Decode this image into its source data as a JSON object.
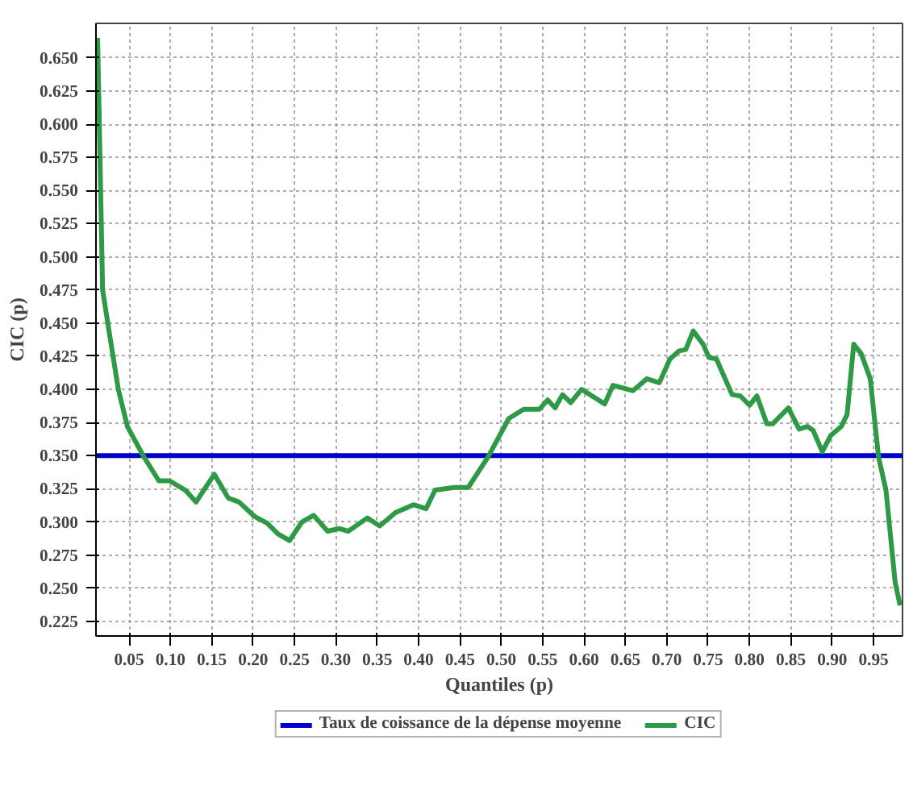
{
  "chart_data": {
    "type": "line",
    "xlabel": "Quantiles (p)",
    "ylabel": "CIC (p)",
    "xlim": [
      0.01,
      0.985
    ],
    "ylim": [
      0.214,
      0.676
    ],
    "xticks": [
      {
        "value": 0.05,
        "label": "0.05"
      },
      {
        "value": 0.1,
        "label": "0.10"
      },
      {
        "value": 0.15,
        "label": "0.15"
      },
      {
        "value": 0.2,
        "label": "0.20"
      },
      {
        "value": 0.25,
        "label": "0.25"
      },
      {
        "value": 0.3,
        "label": "0.30"
      },
      {
        "value": 0.35,
        "label": "0.35"
      },
      {
        "value": 0.4,
        "label": "0.40"
      },
      {
        "value": 0.45,
        "label": "0.45"
      },
      {
        "value": 0.5,
        "label": "0.50"
      },
      {
        "value": 0.55,
        "label": "0.55"
      },
      {
        "value": 0.6,
        "label": "0.60"
      },
      {
        "value": 0.65,
        "label": "0.65"
      },
      {
        "value": 0.7,
        "label": "0.70"
      },
      {
        "value": 0.75,
        "label": "0.75"
      },
      {
        "value": 0.8,
        "label": "0.80"
      },
      {
        "value": 0.85,
        "label": "0.85"
      },
      {
        "value": 0.9,
        "label": "0.90"
      },
      {
        "value": 0.95,
        "label": "0.95"
      }
    ],
    "yticks": [
      {
        "value": 0.225,
        "label": "0.225"
      },
      {
        "value": 0.25,
        "label": "0.250"
      },
      {
        "value": 0.275,
        "label": "0.275"
      },
      {
        "value": 0.3,
        "label": "0.300"
      },
      {
        "value": 0.325,
        "label": "0.325"
      },
      {
        "value": 0.35,
        "label": "0.350"
      },
      {
        "value": 0.375,
        "label": "0.375"
      },
      {
        "value": 0.4,
        "label": "0.400"
      },
      {
        "value": 0.425,
        "label": "0.425"
      },
      {
        "value": 0.45,
        "label": "0.450"
      },
      {
        "value": 0.475,
        "label": "0.475"
      },
      {
        "value": 0.5,
        "label": "0.500"
      },
      {
        "value": 0.525,
        "label": "0.525"
      },
      {
        "value": 0.55,
        "label": "0.550"
      },
      {
        "value": 0.575,
        "label": "0.575"
      },
      {
        "value": 0.6,
        "label": "0.600"
      },
      {
        "value": 0.625,
        "label": "0.625"
      },
      {
        "value": 0.65,
        "label": "0.650"
      }
    ],
    "grid": true,
    "legend": "bottom",
    "line_style": "solid",
    "series": [
      {
        "name": "Taux de coissance de la dépense moyenne",
        "color": "#0000cc",
        "x": [
          0.01,
          0.985
        ],
        "values": [
          0.35,
          0.35
        ]
      },
      {
        "name": "CIC",
        "color": "#2e9a46",
        "x": [
          0.012,
          0.018,
          0.026,
          0.037,
          0.048,
          0.067,
          0.086,
          0.099,
          0.118,
          0.131,
          0.153,
          0.17,
          0.183,
          0.202,
          0.217,
          0.23,
          0.244,
          0.259,
          0.273,
          0.29,
          0.304,
          0.315,
          0.338,
          0.353,
          0.372,
          0.394,
          0.409,
          0.42,
          0.443,
          0.452,
          0.46,
          0.484,
          0.509,
          0.527,
          0.546,
          0.556,
          0.565,
          0.574,
          0.584,
          0.597,
          0.625,
          0.635,
          0.659,
          0.676,
          0.691,
          0.704,
          0.715,
          0.723,
          0.732,
          0.744,
          0.751,
          0.76,
          0.779,
          0.789,
          0.8,
          0.809,
          0.821,
          0.828,
          0.847,
          0.86,
          0.87,
          0.877,
          0.888,
          0.898,
          0.911,
          0.918,
          0.926,
          0.935,
          0.946,
          0.956,
          0.965,
          0.976,
          0.982
        ],
        "values": [
          0.665,
          0.475,
          0.443,
          0.4,
          0.372,
          0.35,
          0.331,
          0.331,
          0.324,
          0.315,
          0.336,
          0.318,
          0.315,
          0.304,
          0.299,
          0.291,
          0.286,
          0.3,
          0.305,
          0.293,
          0.295,
          0.293,
          0.303,
          0.297,
          0.307,
          0.313,
          0.31,
          0.324,
          0.326,
          0.326,
          0.326,
          0.349,
          0.378,
          0.385,
          0.385,
          0.392,
          0.386,
          0.396,
          0.39,
          0.4,
          0.389,
          0.403,
          0.399,
          0.408,
          0.405,
          0.423,
          0.429,
          0.43,
          0.444,
          0.434,
          0.424,
          0.423,
          0.396,
          0.395,
          0.388,
          0.395,
          0.374,
          0.374,
          0.386,
          0.37,
          0.372,
          0.369,
          0.353,
          0.365,
          0.372,
          0.381,
          0.434,
          0.427,
          0.408,
          0.349,
          0.324,
          0.255,
          0.237
        ]
      }
    ]
  }
}
